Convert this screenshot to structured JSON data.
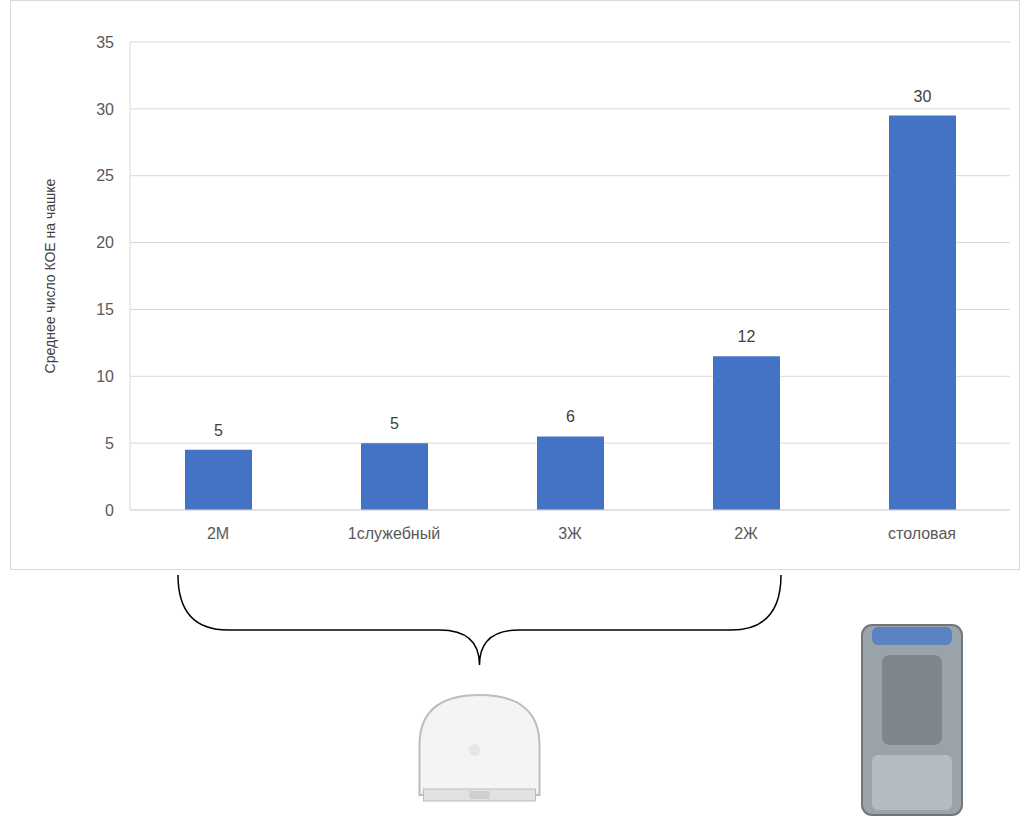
{
  "chart_data": {
    "type": "bar",
    "y_label": "Среднее число КОЕ на чашке",
    "categories": [
      "2М",
      "1служебный",
      "3Ж",
      "2Ж",
      "столовая"
    ],
    "values": [
      4.5,
      5,
      5.5,
      11.5,
      29.5
    ],
    "value_labels": [
      "5",
      "5",
      "6",
      "12",
      "30"
    ],
    "data_labels": true,
    "color": "#4472c4",
    "ylim": [
      0,
      35
    ],
    "yticks": [
      0,
      5,
      10,
      15,
      20,
      25,
      30,
      35
    ],
    "grid": true
  }
}
